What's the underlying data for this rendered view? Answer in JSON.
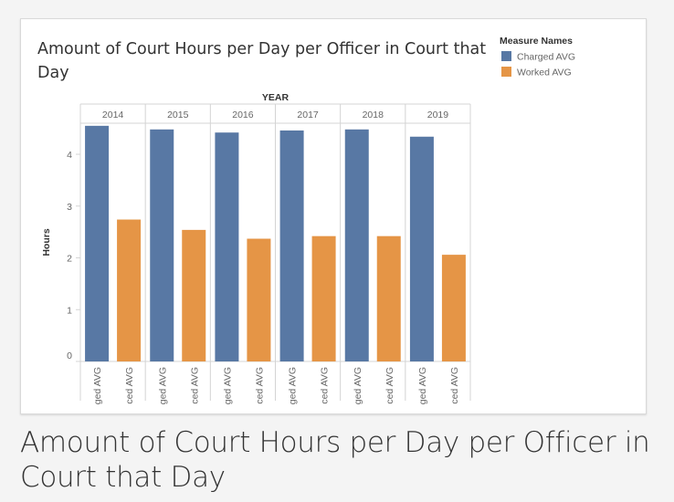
{
  "caption": "Amount of Court Hours per Day per Officer in Court that Day",
  "legend": {
    "title": "Measure Names",
    "items": [
      {
        "label": "Charged AVG",
        "color": "#5878a4"
      },
      {
        "label": "Worked AVG",
        "color": "#e59546"
      }
    ]
  },
  "chart_data": {
    "type": "bar",
    "title_lines": [
      "Amount of Court Hours per Day per Officer in Court that",
      "Day"
    ],
    "column_header": "YEAR",
    "categories": [
      "2014",
      "2015",
      "2016",
      "2017",
      "2018",
      "2019"
    ],
    "series": [
      {
        "name": "Charged AVG",
        "tick_label": "ged AVG",
        "color": "#5878a4",
        "values": [
          4.55,
          4.48,
          4.42,
          4.46,
          4.48,
          4.34
        ]
      },
      {
        "name": "Worked AVG",
        "tick_label": "ced AVG",
        "color": "#e59546",
        "values": [
          2.74,
          2.54,
          2.37,
          2.42,
          2.42,
          2.06
        ]
      }
    ],
    "ylabel": "Hours",
    "yticks": [
      0,
      1,
      2,
      3,
      4
    ],
    "ylim": [
      0,
      4.6
    ],
    "legend_position": "top-right",
    "grid": false
  }
}
